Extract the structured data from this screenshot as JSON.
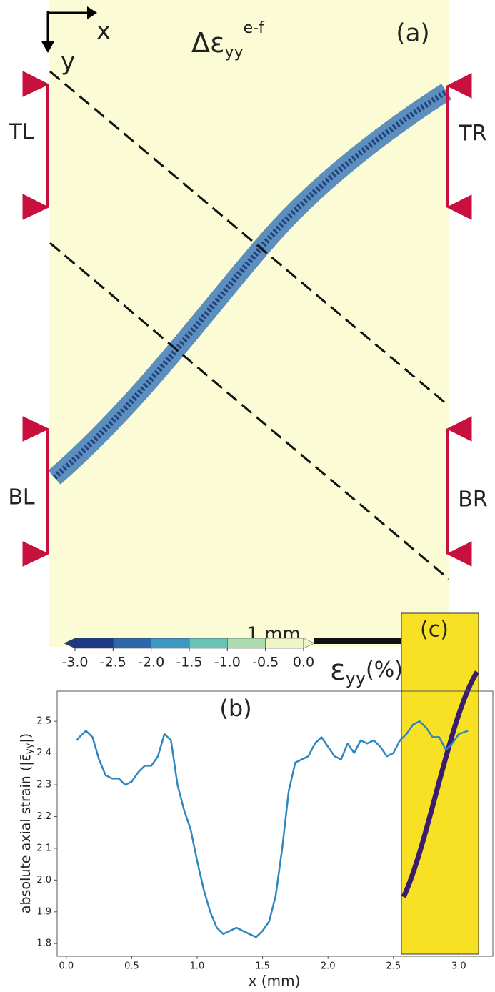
{
  "panel_a": {
    "title": "Δε",
    "title_sub": "yy",
    "title_sup": "e-f",
    "label": "(a)",
    "axis_x": "x",
    "axis_y": "y",
    "markers": [
      "TL",
      "TR",
      "BL",
      "BR"
    ],
    "scale_label": "1 mm",
    "colorbar": {
      "ticks": [
        {
          "value": -3,
          "label": "-3.0"
        },
        {
          "value": -2.5,
          "label": "-2.5"
        },
        {
          "value": -2,
          "label": "-2.0"
        },
        {
          "value": -1.5,
          "label": "-1.5"
        },
        {
          "value": -1,
          "label": "-1.0"
        },
        {
          "value": -0.5,
          "label": "-0.5"
        },
        {
          "value": 0,
          "label": "0.0"
        }
      ],
      "colors": [
        "#1e3a87",
        "#2e67a9",
        "#3b98c0",
        "#66c3b6",
        "#acdcae",
        "#eef6c6"
      ],
      "label": "ε",
      "label_sub": "yy",
      "label_end": "(%)"
    }
  },
  "inset_label": "(c)",
  "chart_data": {
    "type": "line",
    "label": "(b)",
    "xlabel": "x (mm)",
    "ylabel": "absolute axial strain (|ε̄",
    "ylabel_sub": "yy",
    "ylabel_end": "|)",
    "xlim": [
      -0.07,
      3.26
    ],
    "ylim": [
      1.76,
      2.595
    ],
    "xticks": [
      {
        "value": 0,
        "label": "0.0"
      },
      0.5,
      {
        "value": 1,
        "label": "1.0"
      },
      1.5,
      {
        "value": 2,
        "label": "2.0"
      },
      2.5,
      {
        "value": 3,
        "label": "3.0"
      }
    ],
    "yticks": [
      1.8,
      1.9,
      {
        "value": 2,
        "label": "2.0"
      },
      2.1,
      2.2,
      2.3,
      2.4,
      2.5
    ],
    "series": [
      {
        "color": "#2e86c1",
        "x": [
          0.08,
          0.1,
          0.15,
          0.2,
          0.25,
          0.3,
          0.35,
          0.4,
          0.45,
          0.5,
          0.55,
          0.6,
          0.65,
          0.7,
          0.75,
          0.8,
          0.85,
          0.9,
          0.95,
          1.0,
          1.05,
          1.1,
          1.15,
          1.2,
          1.25,
          1.3,
          1.35,
          1.4,
          1.45,
          1.5,
          1.55,
          1.6,
          1.65,
          1.7,
          1.75,
          1.8,
          1.85,
          1.9,
          1.95,
          2.0,
          2.05,
          2.1,
          2.15,
          2.2,
          2.25,
          2.3,
          2.35,
          2.4,
          2.45,
          2.5,
          2.55,
          2.6,
          2.65,
          2.7,
          2.75,
          2.8,
          2.85,
          2.9,
          2.95,
          3.0,
          3.07
        ],
        "values": [
          2.44,
          2.45,
          2.47,
          2.45,
          2.38,
          2.33,
          2.32,
          2.32,
          2.3,
          2.31,
          2.34,
          2.36,
          2.36,
          2.39,
          2.46,
          2.44,
          2.3,
          2.22,
          2.16,
          2.06,
          1.97,
          1.9,
          1.85,
          1.83,
          1.84,
          1.85,
          1.84,
          1.83,
          1.82,
          1.84,
          1.87,
          1.95,
          2.1,
          2.28,
          2.37,
          2.38,
          2.39,
          2.43,
          2.45,
          2.42,
          2.39,
          2.38,
          2.43,
          2.4,
          2.44,
          2.43,
          2.44,
          2.42,
          2.39,
          2.4,
          2.44,
          2.46,
          2.49,
          2.5,
          2.48,
          2.45,
          2.45,
          2.41,
          2.43,
          2.46,
          2.47
        ]
      }
    ]
  }
}
